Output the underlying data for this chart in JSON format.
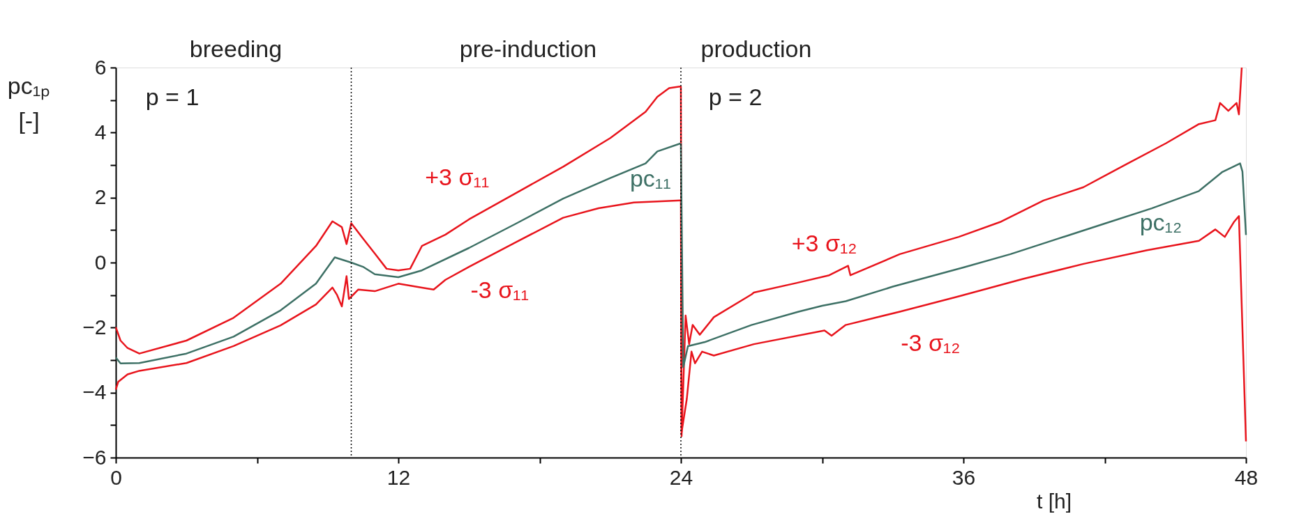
{
  "chart_data": {
    "type": "line",
    "xlabel": "t [h]",
    "ylabel": "pc₁ₚ [-]",
    "xlim": [
      0,
      48
    ],
    "xticks": [
      0,
      {
        "value": 6,
        "label": null
      },
      12,
      {
        "value": 18,
        "label": null
      },
      24,
      {
        "value": 30,
        "label": null
      },
      36,
      {
        "value": 42,
        "label": null
      },
      48
    ],
    "ylim": [
      -6,
      6
    ],
    "yticks": [
      -6,
      {
        "value": -5,
        "label": null
      },
      -4,
      {
        "value": -3,
        "label": null
      },
      -2,
      {
        "value": -1,
        "label": null
      },
      0,
      {
        "value": 1,
        "label": null
      },
      2,
      {
        "value": 3,
        "label": null
      },
      4,
      {
        "value": 5,
        "label": null
      },
      6
    ],
    "grid": false,
    "marker": "none",
    "line_style": "solid",
    "series": [
      {
        "name": "+3 σ₁₁",
        "color": "#e8141c",
        "x": [
          0,
          0.2,
          0.5,
          1,
          3,
          5,
          7,
          8.5,
          9.2,
          9.6,
          9.8,
          10,
          10.5,
          11,
          11.5,
          12,
          12.5,
          13,
          14,
          15,
          17,
          19,
          21,
          22.5,
          23,
          23.5,
          24
        ],
        "values": [
          -1.99,
          -2.4,
          -2.63,
          -2.8,
          -2.4,
          -1.7,
          -0.65,
          0.51,
          1.27,
          1.09,
          0.57,
          1.21,
          0.74,
          0.28,
          -0.19,
          -0.24,
          -0.19,
          0.51,
          0.86,
          1.33,
          2.14,
          2.95,
          3.83,
          4.64,
          5.1,
          5.37,
          5.42
        ]
      },
      {
        "name": "-3 σ₁₁",
        "color": "#e8141c",
        "x": [
          0,
          0.1,
          0.5,
          1,
          3,
          5,
          7,
          8.5,
          9.2,
          9.4,
          9.6,
          9.8,
          9.9,
          10.3,
          11,
          12,
          13,
          13.5,
          14,
          15,
          17,
          19,
          20.5,
          22,
          24
        ],
        "values": [
          -3.91,
          -3.67,
          -3.44,
          -3.33,
          -3.09,
          -2.57,
          -1.93,
          -1.29,
          -0.77,
          -1.0,
          -1.35,
          -0.42,
          -1.12,
          -0.83,
          -0.88,
          -0.65,
          -0.77,
          -0.83,
          -0.53,
          -0.13,
          0.63,
          1.38,
          1.67,
          1.85,
          1.91
        ]
      },
      {
        "name": "pc₁₁",
        "color": "#3d7065",
        "x": [
          0,
          0.2,
          1,
          3,
          5,
          7,
          8.5,
          9.3,
          10,
          10.5,
          11,
          12,
          13,
          15,
          17,
          19,
          21,
          22.5,
          23,
          24
        ],
        "values": [
          -2.92,
          -3.1,
          -3.09,
          -2.8,
          -2.28,
          -1.47,
          -0.65,
          0.16,
          0,
          -0.13,
          -0.36,
          -0.45,
          -0.24,
          0.45,
          1.2,
          1.97,
          2.6,
          3.05,
          3.42,
          3.67
        ]
      },
      {
        "name": "+3 σ₁₂",
        "color": "#e8141c",
        "x": [
          24,
          24.03,
          24.2,
          24.35,
          24.5,
          24.8,
          25.4,
          27,
          27.1,
          28.9,
          30.3,
          31.1,
          31.2,
          33.3,
          35.8,
          37.6,
          39.4,
          41.1,
          42.9,
          44.6,
          46,
          46.7,
          46.9,
          47.25,
          47.6,
          47.7,
          47.82
        ],
        "values": [
          5.42,
          -5.34,
          -1.63,
          -2.51,
          -1.92,
          -2.22,
          -1.68,
          -0.98,
          -0.92,
          -0.63,
          -0.39,
          -0.1,
          -0.39,
          0.26,
          0.79,
          1.26,
          1.91,
          2.32,
          3.02,
          3.67,
          4.26,
          4.38,
          4.91,
          4.67,
          4.91,
          4.56,
          6
        ]
      },
      {
        "name": "-3 σ₁₂",
        "color": "#e8141c",
        "x": [
          24,
          24.03,
          24.25,
          24.45,
          24.6,
          24.9,
          25.4,
          27.1,
          30.1,
          30.4,
          31,
          33.3,
          35.8,
          38.5,
          41.1,
          43.8,
          46,
          46.7,
          47.1,
          47.5,
          47.7,
          48
        ],
        "values": [
          1.91,
          -5.22,
          -4.2,
          -2.74,
          -3.1,
          -2.74,
          -2.86,
          -2.51,
          -2.09,
          -2.25,
          -1.92,
          -1.51,
          -1.04,
          -0.51,
          -0.04,
          0.38,
          0.67,
          1.02,
          0.79,
          1.26,
          1.43,
          -5.5
        ]
      },
      {
        "name": "pc₁₂",
        "color": "#3d7065",
        "x": [
          24,
          24.1,
          24.3,
          25,
          27,
          29,
          30,
          31,
          33,
          36,
          38,
          40,
          42,
          44,
          46,
          47,
          47.75,
          47.85,
          48
        ],
        "values": [
          3.67,
          -3.22,
          -2.57,
          -2.45,
          -1.92,
          -1.51,
          -1.33,
          -1.19,
          -0.74,
          -0.15,
          0.26,
          0.73,
          1.2,
          1.67,
          2.2,
          2.79,
          3.05,
          2.8,
          0.85
        ]
      }
    ],
    "ref_lines": [
      {
        "axis": "x",
        "value": 10,
        "line_style": "dotted",
        "color": "#000000"
      },
      {
        "axis": "x",
        "value": 24,
        "line_style": "dotted",
        "color": "#000000"
      }
    ],
    "annotations": [
      "breeding",
      "pre-induction",
      "production",
      "p = 1",
      "p = 2"
    ]
  }
}
